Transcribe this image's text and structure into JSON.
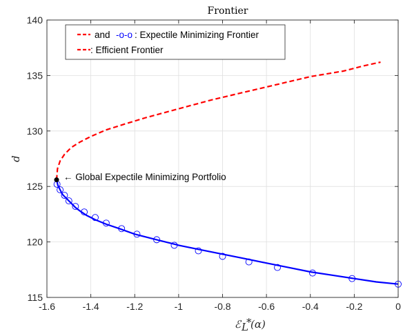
{
  "chart_data": {
    "type": "line",
    "title": "Frontier",
    "xlabel": "ℰ",
    "xlabel_sub": "L",
    "xlabel_sup": "*",
    "xlabel_arg": "(α)",
    "ylabel": "d",
    "xlim": [
      -1.6,
      0
    ],
    "ylim": [
      115,
      140
    ],
    "xticks": [
      -1.6,
      -1.4,
      -1.2,
      -1,
      -0.8,
      -0.6,
      -0.4,
      -0.2,
      0
    ],
    "xtick_labels": [
      "-1.6",
      "-1.4",
      "-1.2",
      "-1",
      "-0.8",
      "-0.6",
      "-0.4",
      "-0.2",
      "0"
    ],
    "yticks": [
      115,
      120,
      125,
      130,
      135,
      140
    ],
    "ytick_labels": [
      "115",
      "120",
      "125",
      "130",
      "135",
      "140"
    ],
    "grid": true,
    "legend_position": "top-left",
    "legend": [
      {
        "prefix": "and",
        "marker_text": "-o-o",
        "suffix": ": Expectile Minimizing Frontier"
      },
      {
        "prefix": "",
        "marker_text": "",
        "suffix": ": Efficient Frontier"
      }
    ],
    "annotation": {
      "text": "← Global Expectile Minimizing Portfolio",
      "x": -1.556,
      "y": 125.6
    },
    "series": [
      {
        "style": "dashed",
        "color": "#ff0000",
        "x": [
          -1.556,
          -1.552,
          -1.54,
          -1.52,
          -1.49,
          -1.45,
          -1.4,
          -1.33,
          -1.25,
          -1.15,
          -1.0,
          -0.85,
          -0.7,
          -0.55,
          -0.4,
          -0.25,
          -0.15,
          -0.08
        ],
        "y": [
          125.6,
          126.6,
          127.3,
          127.9,
          128.5,
          129.0,
          129.5,
          130.1,
          130.6,
          131.2,
          132.0,
          132.8,
          133.5,
          134.2,
          134.9,
          135.4,
          135.9,
          136.2
        ]
      },
      {
        "style": "solid",
        "color": "#0000ff",
        "x": [
          -1.556,
          -1.55,
          -1.54,
          -1.53,
          -1.51,
          -1.49,
          -1.47,
          -1.45,
          -1.42,
          -1.38,
          -1.33,
          -1.27,
          -1.2,
          -1.1,
          -1.0,
          -0.9,
          -0.8,
          -0.7,
          -0.6,
          -0.5,
          -0.4,
          -0.3,
          -0.2,
          -0.1,
          0.0
        ],
        "y": [
          125.6,
          125.1,
          124.7,
          124.3,
          123.9,
          123.5,
          123.1,
          122.8,
          122.4,
          122.0,
          121.6,
          121.2,
          120.7,
          120.2,
          119.7,
          119.3,
          118.9,
          118.5,
          118.1,
          117.7,
          117.3,
          117.0,
          116.7,
          116.4,
          116.2
        ]
      },
      {
        "style": "markers",
        "color": "#0000ff",
        "marker": "circle-open",
        "x": [
          -1.554,
          -1.54,
          -1.52,
          -1.5,
          -1.47,
          -1.43,
          -1.38,
          -1.33,
          -1.26,
          -1.19,
          -1.1,
          -1.02,
          -0.91,
          -0.8,
          -0.68,
          -0.55,
          -0.39,
          -0.21,
          0.0
        ],
        "y": [
          125.2,
          124.7,
          124.2,
          123.7,
          123.2,
          122.7,
          122.2,
          121.7,
          121.2,
          120.7,
          120.2,
          119.7,
          119.2,
          118.7,
          118.2,
          117.7,
          117.2,
          116.7,
          116.2
        ]
      }
    ],
    "special_point": {
      "x": -1.556,
      "y": 125.6,
      "color": "#000000"
    }
  }
}
